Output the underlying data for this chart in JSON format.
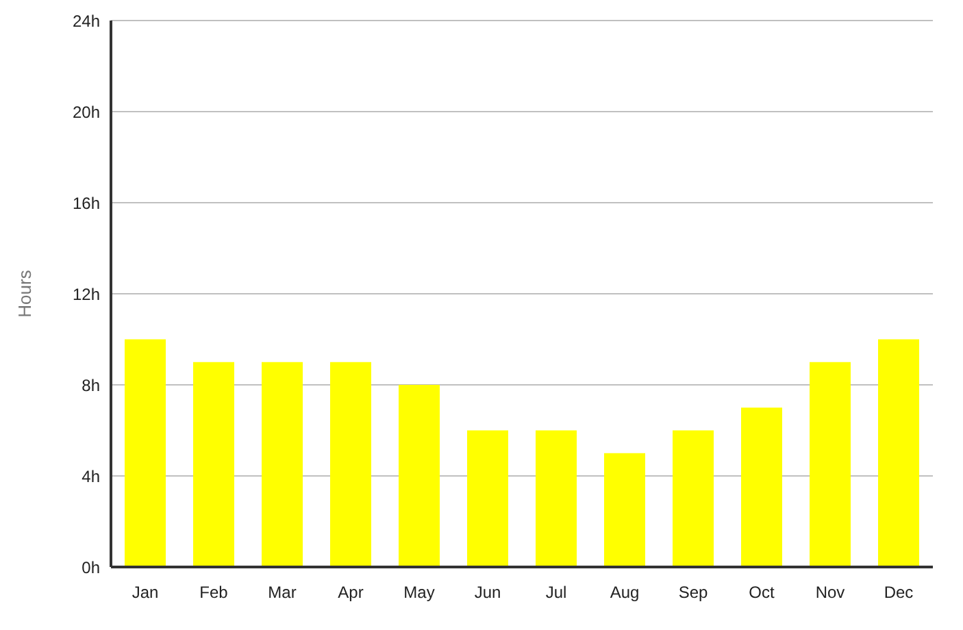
{
  "chart_data": {
    "type": "bar",
    "ylabel": "Hours",
    "categories": [
      "Jan",
      "Feb",
      "Mar",
      "Apr",
      "May",
      "Jun",
      "Jul",
      "Aug",
      "Sep",
      "Oct",
      "Nov",
      "Dec"
    ],
    "values": [
      10,
      9,
      9,
      9,
      8,
      6,
      6,
      5,
      6,
      7,
      9,
      10
    ],
    "color": "#ffff00",
    "ylim": [
      0,
      24
    ],
    "yticks": [
      {
        "value": 0,
        "label": "0h"
      },
      {
        "value": 4,
        "label": "4h"
      },
      {
        "value": 8,
        "label": "8h"
      },
      {
        "value": 12,
        "label": "12h"
      },
      {
        "value": 16,
        "label": "16h"
      },
      {
        "value": 20,
        "label": "20h"
      },
      {
        "value": 24,
        "label": "24h"
      }
    ],
    "grid": "y",
    "legend": false
  }
}
